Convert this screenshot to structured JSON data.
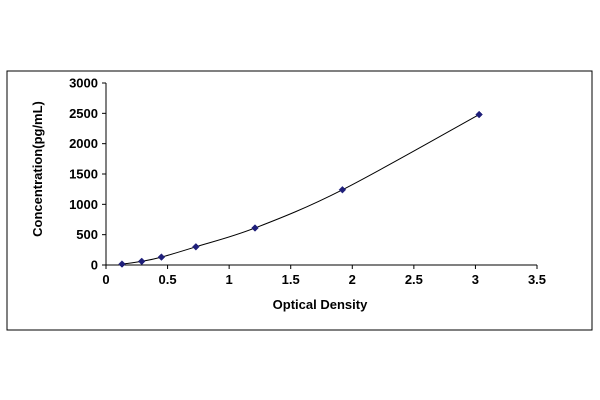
{
  "chart_data": {
    "type": "scatter",
    "title": "",
    "xlabel": "Optical Density",
    "ylabel": "Concentration(pg/mL)",
    "xlim": [
      0,
      3.5
    ],
    "ylim": [
      0,
      3000
    ],
    "x_ticks": [
      "0",
      "0.5",
      "1",
      "1.5",
      "2",
      "2.5",
      "3",
      "3.5"
    ],
    "y_ticks": [
      "0",
      "500",
      "1000",
      "1500",
      "2000",
      "2500",
      "3000"
    ],
    "grid": false,
    "legend": "none",
    "series": [
      {
        "x": [
          0.13,
          0.29,
          0.45,
          0.73,
          1.21,
          1.92,
          3.03
        ],
        "y": [
          15,
          60,
          130,
          300,
          610,
          1240,
          2480
        ],
        "color": "#1f1f7a",
        "marker": "diamond",
        "trendline": true
      }
    ]
  }
}
